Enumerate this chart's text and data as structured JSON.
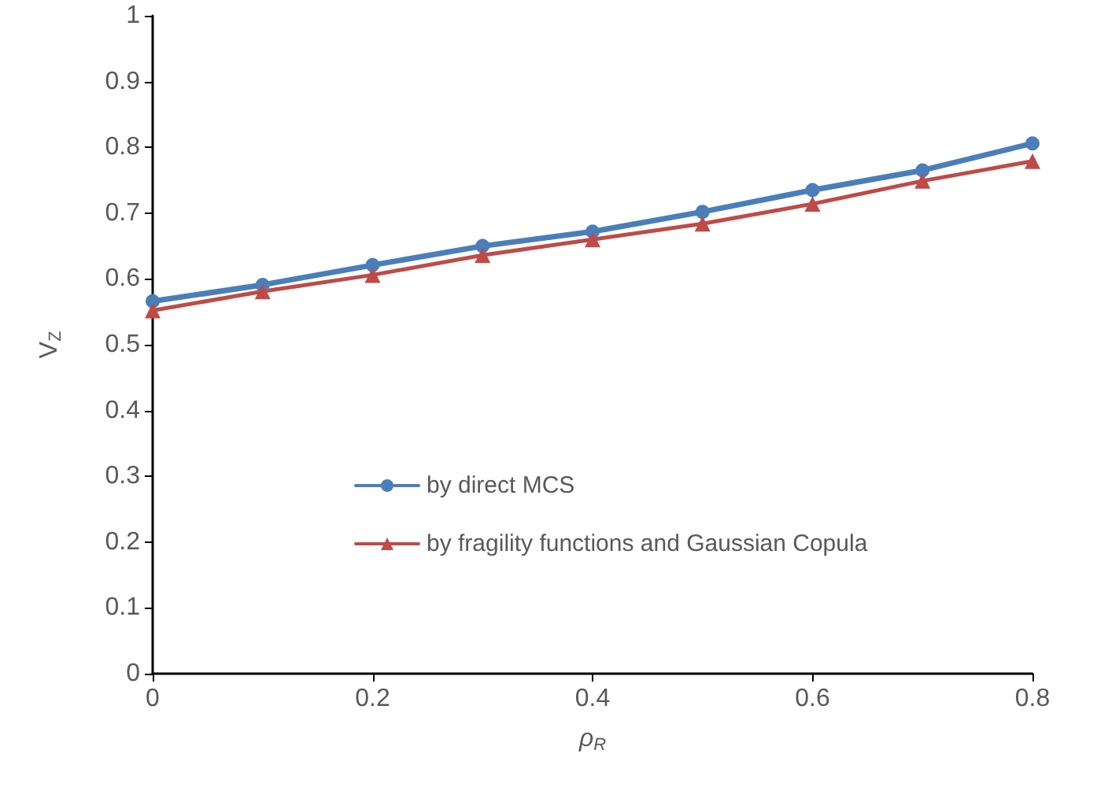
{
  "chart_data": {
    "type": "line",
    "xlabel": "ρ$_{R}$",
    "ylabel": "V$_{Z}$",
    "x": [
      0,
      0.1,
      0.2,
      0.3,
      0.4,
      0.5,
      0.6,
      0.7,
      0.8
    ],
    "series": [
      {
        "name": "by direct MCS",
        "color": "#4a7ebb",
        "marker": "circle",
        "values": [
          0.566,
          0.591,
          0.621,
          0.65,
          0.672,
          0.702,
          0.735,
          0.765,
          0.806
        ]
      },
      {
        "name": "by fragility functions and Gaussian Copula",
        "color": "#be4b48",
        "marker": "triangle",
        "values": [
          0.552,
          0.581,
          0.606,
          0.636,
          0.66,
          0.684,
          0.714,
          0.749,
          0.779
        ]
      }
    ],
    "xlim": [
      0,
      0.8
    ],
    "xticks": [
      0,
      0.2,
      0.4,
      0.6,
      0.8
    ],
    "ylim": [
      0,
      1
    ],
    "yticks": [
      0,
      0.1,
      0.2,
      0.3,
      0.4,
      0.5,
      0.6,
      0.7,
      0.8,
      0.9,
      1
    ],
    "grid": false,
    "legend": "bottom",
    "line_style": "solid"
  }
}
